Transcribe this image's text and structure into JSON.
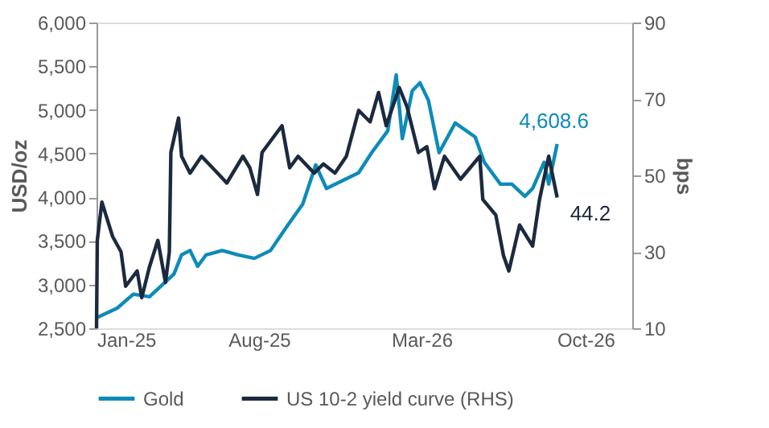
{
  "chart_data": {
    "type": "line",
    "ylabel": "USD/oz",
    "y2label": "bps",
    "xlim": [
      "2025-01-01",
      "2026-12-01"
    ],
    "xticks": [
      {
        "value": "2025-01-01",
        "label": "Jan-25"
      },
      {
        "value": "2025-08-01",
        "label": "Aug-25"
      },
      {
        "value": "2026-03-01",
        "label": "Mar-26"
      },
      {
        "value": "2026-10-01",
        "label": "Oct-26"
      }
    ],
    "ylim": [
      2500,
      6000
    ],
    "yticks": [
      {
        "value": 2500,
        "label": "2,500"
      },
      {
        "value": 3000,
        "label": "3,000"
      },
      {
        "value": 3500,
        "label": "3,500"
      },
      {
        "value": 4000,
        "label": "4,000"
      },
      {
        "value": 4500,
        "label": "4,500"
      },
      {
        "value": 5000,
        "label": "5,000"
      },
      {
        "value": 5500,
        "label": "5,500"
      },
      {
        "value": 6000,
        "label": "6,000"
      }
    ],
    "y2lim": [
      10,
      90
    ],
    "y2ticks": [
      10,
      30,
      50,
      70,
      90
    ],
    "grid": false,
    "legend": "bottom",
    "marker": "none",
    "line_style": "solid",
    "series": [
      {
        "name": "Gold",
        "color": "#0e8bb9",
        "x": [
          "2025-01-01",
          "2025-01-28",
          "2025-02-18",
          "2025-03-11",
          "2025-04-01",
          "2025-04-12",
          "2025-04-22",
          "2025-05-03",
          "2025-05-13",
          "2025-05-24",
          "2025-06-14",
          "2025-07-05",
          "2025-07-26",
          "2025-08-16",
          "2025-09-06",
          "2025-09-27",
          "2025-10-14",
          "2025-10-28",
          "2025-11-18",
          "2025-12-09",
          "2025-12-26",
          "2026-01-16",
          "2026-01-27",
          "2026-02-04",
          "2026-02-17",
          "2026-02-27",
          "2026-03-10",
          "2026-03-24",
          "2026-04-14",
          "2026-05-10",
          "2026-05-22",
          "2026-06-12",
          "2026-06-27",
          "2026-07-14",
          "2026-07-24",
          "2026-08-08",
          "2026-08-14",
          "2026-08-25"
        ],
        "values": [
          2620,
          2730,
          2890,
          2860,
          3030,
          3120,
          3340,
          3390,
          3210,
          3340,
          3390,
          3340,
          3300,
          3390,
          3660,
          3920,
          4370,
          4100,
          4190,
          4280,
          4510,
          4760,
          5400,
          4670,
          5220,
          5310,
          5110,
          4510,
          4850,
          4690,
          4400,
          4150,
          4150,
          4010,
          4100,
          4400,
          4150,
          4608.6
        ]
      },
      {
        "name": "US 10-2 yield curve (RHS)",
        "color": "#1b2a3e",
        "axis": "y2",
        "x": [
          "2025-01-01",
          "2025-01-02",
          "2025-01-08",
          "2025-01-22",
          "2025-02-02",
          "2025-02-08",
          "2025-02-23",
          "2025-03-01",
          "2025-03-11",
          "2025-03-22",
          "2025-04-01",
          "2025-04-06",
          "2025-04-08",
          "2025-04-18",
          "2025-04-22",
          "2025-05-03",
          "2025-05-18",
          "2025-06-08",
          "2025-06-20",
          "2025-07-11",
          "2025-07-20",
          "2025-07-30",
          "2025-08-05",
          "2025-08-31",
          "2025-09-10",
          "2025-09-21",
          "2025-10-12",
          "2025-10-24",
          "2025-11-08",
          "2025-11-23",
          "2025-12-09",
          "2025-12-24",
          "2026-01-04",
          "2026-01-14",
          "2026-01-31",
          "2026-02-10",
          "2026-02-25",
          "2026-03-08",
          "2026-03-18",
          "2026-03-31",
          "2026-04-21",
          "2026-05-16",
          "2026-05-20",
          "2026-06-06",
          "2026-06-16",
          "2026-06-23",
          "2026-07-07",
          "2026-07-24",
          "2026-08-02",
          "2026-08-14",
          "2026-08-25"
        ],
        "values": [
          10,
          33,
          43,
          34,
          30,
          21,
          25,
          18,
          26,
          33,
          22,
          30,
          56,
          65,
          55,
          50.6,
          55,
          50.6,
          48,
          55,
          52,
          45,
          56,
          63,
          52,
          55,
          50.6,
          53,
          50.6,
          55,
          67,
          64,
          71.7,
          63,
          73,
          68,
          56,
          57.5,
          46.5,
          55,
          49,
          55,
          43.7,
          39.6,
          29,
          25,
          37,
          31.5,
          43.7,
          55,
          44.2
        ]
      }
    ],
    "annotations": [
      "4,608.6",
      "44.2"
    ]
  }
}
